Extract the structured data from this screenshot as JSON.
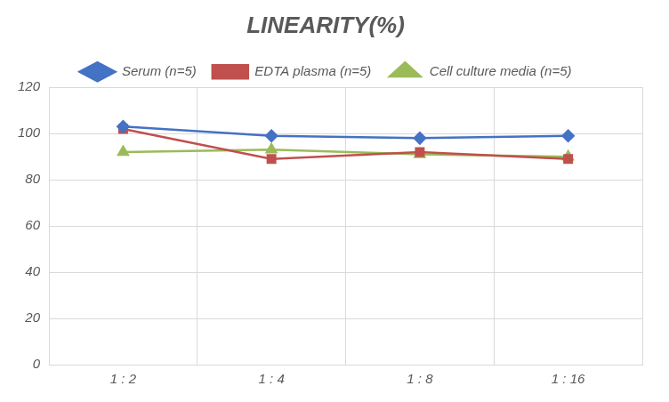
{
  "chart_data": {
    "type": "line",
    "title": "LINEARITY(%)",
    "categories": [
      "1 : 2",
      "1 : 4",
      "1 : 8",
      "1 : 16"
    ],
    "series": [
      {
        "name": "Serum (n=5)",
        "color": "#4472c4",
        "marker": "diamond",
        "values": [
          103,
          99,
          98,
          99
        ]
      },
      {
        "name": "EDTA plasma (n=5)",
        "color": "#c0504d",
        "marker": "square",
        "values": [
          102,
          89,
          92,
          89
        ]
      },
      {
        "name": "Cell culture media (n=5)",
        "color": "#9bbb59",
        "marker": "triangle",
        "values": [
          92,
          93,
          91,
          90
        ]
      }
    ],
    "ylim": [
      0,
      120
    ],
    "yticks": [
      0,
      20,
      40,
      60,
      80,
      100,
      120
    ],
    "grid": true,
    "legend": "top"
  }
}
